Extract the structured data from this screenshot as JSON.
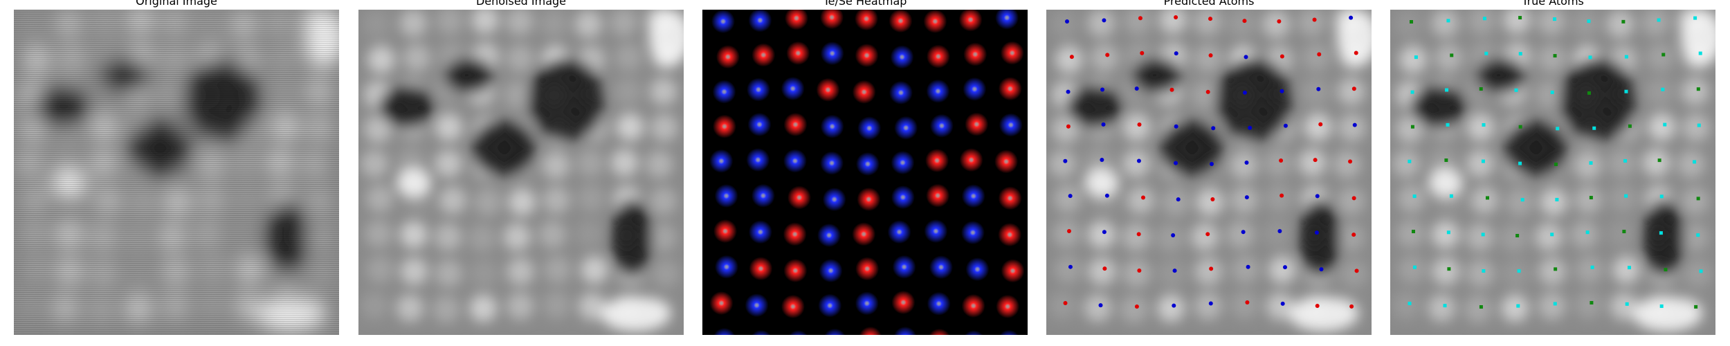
{
  "panels": [
    {
      "title": "Original Image"
    },
    {
      "title": "Denoised Image"
    },
    {
      "title": "Te/Se Heatmap"
    },
    {
      "title": "Predicted Atoms"
    },
    {
      "title": "True Atoms"
    }
  ],
  "colors": {
    "te": "#ff2020",
    "se": "#2030ff",
    "predicted_te": "#e00000",
    "predicted_se": "#0000d0",
    "true_a": "#00e0e0",
    "true_b": "#118811",
    "heatmap_background": "#000000"
  }
}
